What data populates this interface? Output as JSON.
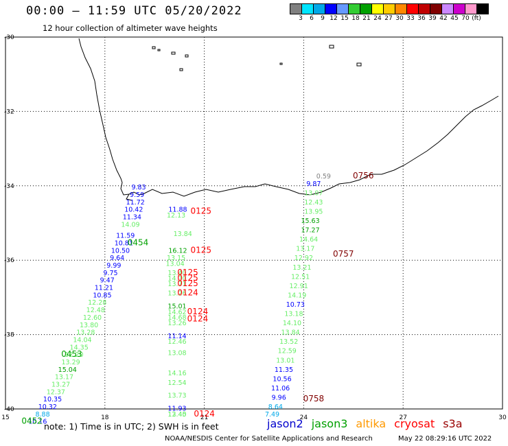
{
  "header": {
    "title": "00:00 – 11:59 UTC 05/20/2022",
    "subtitle": "12 hour collection of altimeter wave heights"
  },
  "colorbar": {
    "colors": [
      "#808080",
      "#00e5ff",
      "#00a8e8",
      "#0000ff",
      "#6699ff",
      "#33cc33",
      "#00a000",
      "#ffff00",
      "#ffcc00",
      "#ff8800",
      "#ff0000",
      "#c00000",
      "#800000",
      "#cc88ff",
      "#cc00cc",
      "#ff99cc",
      "#000000"
    ],
    "labels": [
      "3",
      "6",
      "9",
      "12",
      "15",
      "18",
      "21",
      "24",
      "27",
      "30",
      "33",
      "36",
      "39",
      "42",
      "45",
      "70",
      "(ft)"
    ]
  },
  "axes": {
    "x_ticks": [
      "15",
      "18",
      "21",
      "24",
      "27",
      "30"
    ],
    "y_ticks": [
      "-30",
      "-32",
      "-34",
      "-36",
      "-38",
      "-40"
    ]
  },
  "chart_data": {
    "type": "scatter",
    "xlim": [
      15,
      30
    ],
    "ylim": [
      -40,
      -30
    ],
    "grid": true,
    "points": [
      {
        "lon": 19.02,
        "lat": -34.1,
        "v": "9.83",
        "c": "#0000ff"
      },
      {
        "lon": 18.97,
        "lat": -34.3,
        "v": "9.59",
        "c": "#0000ff"
      },
      {
        "lon": 18.92,
        "lat": -34.5,
        "v": "11.72",
        "c": "#0000ff"
      },
      {
        "lon": 18.87,
        "lat": -34.7,
        "v": "10.42",
        "c": "#0000ff"
      },
      {
        "lon": 18.82,
        "lat": -34.9,
        "v": "11.34",
        "c": "#0000ff"
      },
      {
        "lon": 18.77,
        "lat": -35.1,
        "v": "14.09",
        "c": "#66ee66"
      },
      {
        "lon": 18.62,
        "lat": -35.4,
        "v": "11.59",
        "c": "#0000ff"
      },
      {
        "lon": 18.57,
        "lat": -35.6,
        "v": "10.81",
        "c": "#0000ff"
      },
      {
        "lon": 18.47,
        "lat": -35.8,
        "v": "10.50",
        "c": "#0000ff"
      },
      {
        "lon": 18.37,
        "lat": -36.0,
        "v": "9.64",
        "c": "#0000ff"
      },
      {
        "lon": 18.27,
        "lat": -36.2,
        "v": "9.99",
        "c": "#0000ff"
      },
      {
        "lon": 18.17,
        "lat": -36.4,
        "v": "9.75",
        "c": "#0000ff"
      },
      {
        "lon": 18.07,
        "lat": -36.6,
        "v": "9.47",
        "c": "#0000ff"
      },
      {
        "lon": 17.97,
        "lat": -36.8,
        "v": "11.21",
        "c": "#0000ff"
      },
      {
        "lon": 17.92,
        "lat": -37.0,
        "v": "10.85",
        "c": "#0000ff"
      },
      {
        "lon": 17.77,
        "lat": -37.2,
        "v": "12.28",
        "c": "#66ee66"
      },
      {
        "lon": 17.72,
        "lat": -37.4,
        "v": "12.48",
        "c": "#66ee66"
      },
      {
        "lon": 17.62,
        "lat": -37.6,
        "v": "12.60",
        "c": "#66ee66"
      },
      {
        "lon": 17.52,
        "lat": -37.8,
        "v": "13.80",
        "c": "#66ee66"
      },
      {
        "lon": 17.42,
        "lat": -38.0,
        "v": "13.28",
        "c": "#66ee66"
      },
      {
        "lon": 17.32,
        "lat": -38.2,
        "v": "14.04",
        "c": "#66ee66"
      },
      {
        "lon": 17.22,
        "lat": -38.4,
        "v": "14.35",
        "c": "#66ee66"
      },
      {
        "lon": 17.07,
        "lat": -38.6,
        "v": "12.20",
        "c": "#66ee66"
      },
      {
        "lon": 16.97,
        "lat": -38.8,
        "v": "13.29",
        "c": "#66ee66"
      },
      {
        "lon": 16.87,
        "lat": -39.0,
        "v": "15.04",
        "c": "#00a000"
      },
      {
        "lon": 16.77,
        "lat": -39.2,
        "v": "13.17",
        "c": "#66ee66"
      },
      {
        "lon": 16.67,
        "lat": -39.4,
        "v": "13.27",
        "c": "#66ee66"
      },
      {
        "lon": 16.52,
        "lat": -39.6,
        "v": "12.37",
        "c": "#66ee66"
      },
      {
        "lon": 16.42,
        "lat": -39.8,
        "v": "10.35",
        "c": "#0000ff"
      },
      {
        "lon": 16.27,
        "lat": -40.0,
        "v": "10.32",
        "c": "#0000ff"
      },
      {
        "lon": 16.12,
        "lat": -40.2,
        "v": "8.88",
        "c": "#00a8e8"
      },
      {
        "lon": 15.97,
        "lat": -40.4,
        "v": "10.16",
        "c": "#0000ff"
      },
      {
        "lon": 20.2,
        "lat": -34.7,
        "v": "11.88",
        "c": "#0000ff"
      },
      {
        "lon": 20.15,
        "lat": -34.85,
        "v": "12.13",
        "c": "#66ee66"
      },
      {
        "lon": 20.35,
        "lat": -35.35,
        "v": "13.84",
        "c": "#66ee66"
      },
      {
        "lon": 20.2,
        "lat": -35.8,
        "v": "16.12",
        "c": "#00a000"
      },
      {
        "lon": 20.15,
        "lat": -36.0,
        "v": "13.15",
        "c": "#66ee66"
      },
      {
        "lon": 20.12,
        "lat": -36.15,
        "v": "13.04",
        "c": "#66ee66"
      },
      {
        "lon": 20.18,
        "lat": -36.4,
        "v": "13.40",
        "c": "#66ee66"
      },
      {
        "lon": 20.18,
        "lat": -36.55,
        "v": "14.30",
        "c": "#66ee66"
      },
      {
        "lon": 20.18,
        "lat": -36.7,
        "v": "13.71",
        "c": "#66ee66"
      },
      {
        "lon": 20.18,
        "lat": -36.95,
        "v": "13.26",
        "c": "#66ee66"
      },
      {
        "lon": 20.18,
        "lat": -37.3,
        "v": "15.01",
        "c": "#00a000"
      },
      {
        "lon": 20.18,
        "lat": -37.45,
        "v": "14.62",
        "c": "#66ee66"
      },
      {
        "lon": 20.18,
        "lat": -37.6,
        "v": "14.68",
        "c": "#66ee66"
      },
      {
        "lon": 20.18,
        "lat": -37.75,
        "v": "13.26",
        "c": "#66ee66"
      },
      {
        "lon": 20.18,
        "lat": -38.1,
        "v": "11.14",
        "c": "#0000ff"
      },
      {
        "lon": 20.18,
        "lat": -38.25,
        "v": "12.46",
        "c": "#66ee66"
      },
      {
        "lon": 20.18,
        "lat": -38.55,
        "v": "13.08",
        "c": "#66ee66"
      },
      {
        "lon": 20.18,
        "lat": -39.1,
        "v": "14.16",
        "c": "#66ee66"
      },
      {
        "lon": 20.18,
        "lat": -39.35,
        "v": "12.54",
        "c": "#66ee66"
      },
      {
        "lon": 20.18,
        "lat": -39.7,
        "v": "13.73",
        "c": "#66ee66"
      },
      {
        "lon": 20.18,
        "lat": -40.05,
        "v": "11.93",
        "c": "#0000ff"
      },
      {
        "lon": 20.18,
        "lat": -40.2,
        "v": "12.40",
        "c": "#66ee66"
      },
      {
        "lon": 20.18,
        "lat": -40.2,
        "v": "13.45",
        "c": "#66ee66"
      },
      {
        "lon": 24.3,
        "lat": -34.0,
        "v": "9.87",
        "c": "#0000ff"
      },
      {
        "lon": 24.3,
        "lat": -34.25,
        "v": "13.07",
        "c": "#66ee66"
      },
      {
        "lon": 24.3,
        "lat": -34.5,
        "v": "12.43",
        "c": "#66ee66"
      },
      {
        "lon": 24.3,
        "lat": -34.75,
        "v": "13.95",
        "c": "#66ee66"
      },
      {
        "lon": 24.2,
        "lat": -35.0,
        "v": "15.63",
        "c": "#00a000"
      },
      {
        "lon": 24.2,
        "lat": -35.25,
        "v": "17.27",
        "c": "#00a000"
      },
      {
        "lon": 24.15,
        "lat": -35.5,
        "v": "14.64",
        "c": "#66ee66"
      },
      {
        "lon": 24.05,
        "lat": -35.75,
        "v": "13.17",
        "c": "#66ee66"
      },
      {
        "lon": 24.0,
        "lat": -36.0,
        "v": "12.92",
        "c": "#66ee66"
      },
      {
        "lon": 23.95,
        "lat": -36.25,
        "v": "13.21",
        "c": "#66ee66"
      },
      {
        "lon": 23.9,
        "lat": -36.5,
        "v": "12.51",
        "c": "#66ee66"
      },
      {
        "lon": 23.85,
        "lat": -36.75,
        "v": "12.91",
        "c": "#66ee66"
      },
      {
        "lon": 23.8,
        "lat": -37.0,
        "v": "14.19",
        "c": "#66ee66"
      },
      {
        "lon": 23.75,
        "lat": -37.25,
        "v": "10.73",
        "c": "#0000ff"
      },
      {
        "lon": 23.7,
        "lat": -37.5,
        "v": "13.18",
        "c": "#66ee66"
      },
      {
        "lon": 23.65,
        "lat": -37.75,
        "v": "14.10",
        "c": "#66ee66"
      },
      {
        "lon": 23.6,
        "lat": -38.0,
        "v": "13.84",
        "c": "#66ee66"
      },
      {
        "lon": 23.55,
        "lat": -38.25,
        "v": "13.52",
        "c": "#66ee66"
      },
      {
        "lon": 23.5,
        "lat": -38.5,
        "v": "12.59",
        "c": "#66ee66"
      },
      {
        "lon": 23.45,
        "lat": -38.75,
        "v": "13.01",
        "c": "#66ee66"
      },
      {
        "lon": 23.4,
        "lat": -39.0,
        "v": "11.35",
        "c": "#0000ff"
      },
      {
        "lon": 23.35,
        "lat": -39.25,
        "v": "10.56",
        "c": "#0000ff"
      },
      {
        "lon": 23.3,
        "lat": -39.5,
        "v": "11.06",
        "c": "#0000ff"
      },
      {
        "lon": 23.25,
        "lat": -39.75,
        "v": "9.96",
        "c": "#0000ff"
      },
      {
        "lon": 23.15,
        "lat": -40.0,
        "v": "8.64",
        "c": "#00a8e8"
      },
      {
        "lon": 23.05,
        "lat": -40.2,
        "v": "7.49",
        "c": "#00a8e8"
      },
      {
        "lon": 24.6,
        "lat": -33.8,
        "v": "0.59",
        "c": "#808080"
      }
    ],
    "time_labels": [
      {
        "lon": 20.9,
        "lat": -34.75,
        "t": "0125",
        "c": "#ff0000"
      },
      {
        "lon": 20.9,
        "lat": -35.8,
        "t": "0125",
        "c": "#ff0000"
      },
      {
        "lon": 20.5,
        "lat": -36.4,
        "t": "0125",
        "c": "#ff0000"
      },
      {
        "lon": 20.5,
        "lat": -36.55,
        "t": "0125",
        "c": "#ff0000"
      },
      {
        "lon": 20.5,
        "lat": -36.7,
        "t": "0125",
        "c": "#ff0000"
      },
      {
        "lon": 20.5,
        "lat": -36.95,
        "t": "0124",
        "c": "#ff0000"
      },
      {
        "lon": 20.8,
        "lat": -37.45,
        "t": "0124",
        "c": "#ff0000"
      },
      {
        "lon": 20.8,
        "lat": -37.65,
        "t": "0124",
        "c": "#ff0000"
      },
      {
        "lon": 21.0,
        "lat": -40.2,
        "t": "0124",
        "c": "#ff0000"
      },
      {
        "lon": 19.0,
        "lat": -35.6,
        "t": "0454",
        "c": "#00a000"
      },
      {
        "lon": 17.0,
        "lat": -38.6,
        "t": "0453",
        "c": "#00a000"
      },
      {
        "lon": 15.8,
        "lat": -40.4,
        "t": "0452",
        "c": "#00a000"
      },
      {
        "lon": 25.8,
        "lat": -33.8,
        "t": "0756",
        "c": "#800000"
      },
      {
        "lon": 25.2,
        "lat": -35.9,
        "t": "0757",
        "c": "#800000"
      },
      {
        "lon": 24.3,
        "lat": -39.8,
        "t": "0758",
        "c": "#800000"
      }
    ]
  },
  "footer": {
    "note": "note:  1) Time is in UTC; 2) SWH is in feet",
    "satellites": [
      {
        "name": "jason2",
        "color": "#0000cc"
      },
      {
        "name": "jason3",
        "color": "#00a000"
      },
      {
        "name": "altika",
        "color": "#ff9900"
      },
      {
        "name": "cryosat",
        "color": "#ff0000"
      },
      {
        "name": "s3a",
        "color": "#990000"
      }
    ],
    "credit": "NOAA/NESDIS Center for Satellite Applications and Research",
    "timestamp": "May 22 08:29:16 UTC 2022"
  }
}
